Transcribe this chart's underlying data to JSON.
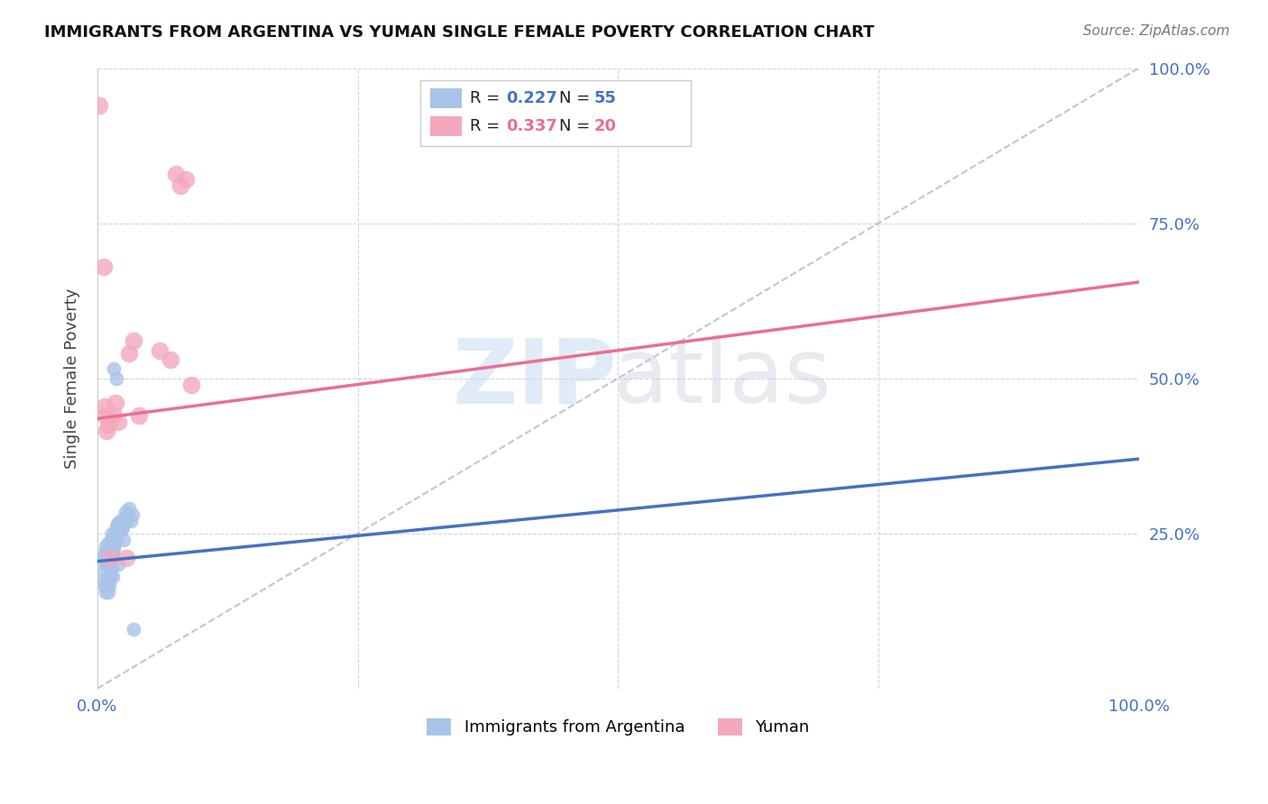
{
  "title": "IMMIGRANTS FROM ARGENTINA VS YUMAN SINGLE FEMALE POVERTY CORRELATION CHART",
  "source": "Source: ZipAtlas.com",
  "ylabel": "Single Female Poverty",
  "blue_R": 0.227,
  "blue_N": 55,
  "pink_R": 0.337,
  "pink_N": 20,
  "blue_color": "#a8c4e8",
  "pink_color": "#f4a8be",
  "blue_line_color": "#4472c4",
  "pink_line_color": "#e87090",
  "dashed_line_color": "#b0b8c8",
  "blue_x": [
    0.005,
    0.006,
    0.007,
    0.008,
    0.008,
    0.009,
    0.009,
    0.01,
    0.01,
    0.01,
    0.011,
    0.011,
    0.012,
    0.012,
    0.013,
    0.013,
    0.014,
    0.014,
    0.014,
    0.015,
    0.015,
    0.015,
    0.016,
    0.016,
    0.017,
    0.017,
    0.018,
    0.018,
    0.019,
    0.02,
    0.021,
    0.022,
    0.023,
    0.024,
    0.025,
    0.027,
    0.028,
    0.03,
    0.032,
    0.034,
    0.006,
    0.007,
    0.008,
    0.009,
    0.01,
    0.011,
    0.012,
    0.013,
    0.014,
    0.015,
    0.016,
    0.018,
    0.02,
    0.025,
    0.035
  ],
  "blue_y": [
    0.215,
    0.19,
    0.205,
    0.215,
    0.23,
    0.2,
    0.22,
    0.225,
    0.235,
    0.2,
    0.195,
    0.21,
    0.22,
    0.23,
    0.215,
    0.24,
    0.21,
    0.225,
    0.25,
    0.215,
    0.225,
    0.24,
    0.225,
    0.24,
    0.235,
    0.25,
    0.24,
    0.26,
    0.265,
    0.255,
    0.265,
    0.27,
    0.255,
    0.26,
    0.275,
    0.285,
    0.27,
    0.29,
    0.27,
    0.28,
    0.175,
    0.165,
    0.155,
    0.17,
    0.155,
    0.165,
    0.18,
    0.185,
    0.195,
    0.18,
    0.515,
    0.5,
    0.2,
    0.24,
    0.095
  ],
  "pink_x": [
    0.002,
    0.006,
    0.007,
    0.008,
    0.009,
    0.01,
    0.012,
    0.016,
    0.017,
    0.02,
    0.028,
    0.03,
    0.035,
    0.04,
    0.06,
    0.07,
    0.075,
    0.08,
    0.085,
    0.09
  ],
  "pink_y": [
    0.94,
    0.68,
    0.455,
    0.44,
    0.415,
    0.425,
    0.21,
    0.44,
    0.46,
    0.43,
    0.21,
    0.54,
    0.56,
    0.44,
    0.545,
    0.53,
    0.83,
    0.81,
    0.82,
    0.49
  ],
  "blue_line_x0": 0.0,
  "blue_line_y0": 0.205,
  "blue_line_x1": 1.0,
  "blue_line_y1": 0.37,
  "pink_line_x0": 0.0,
  "pink_line_y0": 0.435,
  "pink_line_x1": 1.0,
  "pink_line_y1": 0.655,
  "ytick_labels": [
    "",
    "25.0%",
    "50.0%",
    "75.0%",
    "100.0%"
  ],
  "ytick_values": [
    0.0,
    0.25,
    0.5,
    0.75,
    1.0
  ],
  "xtick_labels": [
    "0.0%",
    "",
    "",
    "",
    "100.0%"
  ],
  "xtick_values": [
    0.0,
    0.25,
    0.5,
    0.75,
    1.0
  ],
  "legend_label1": "Immigrants from Argentina",
  "legend_label2": "Yuman"
}
